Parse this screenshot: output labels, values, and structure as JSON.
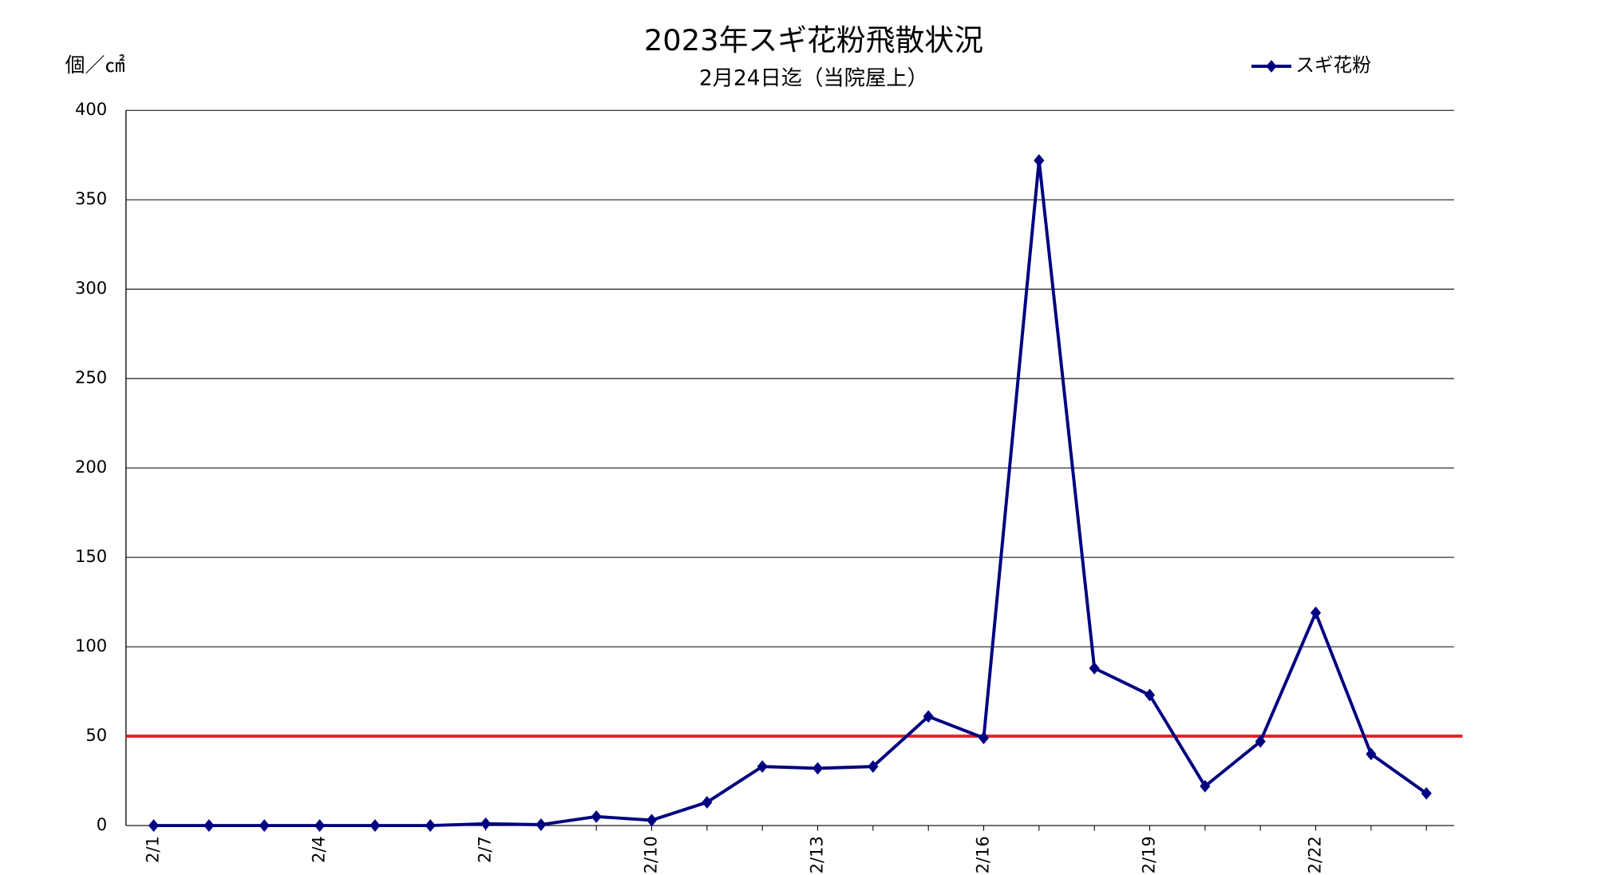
{
  "chart_data": {
    "type": "line",
    "title": "2023年スギ花粉飛散状況",
    "subtitle": "2月24日迄（当院屋上）",
    "y_label": "個／㎠",
    "categories": [
      "2/1",
      null,
      null,
      "2/4",
      null,
      null,
      "2/7",
      null,
      null,
      "2/10",
      null,
      null,
      "2/13",
      null,
      null,
      "2/16",
      null,
      null,
      "2/19",
      null,
      null,
      "2/22",
      null,
      null
    ],
    "series": [
      {
        "name": "スギ花粉",
        "color": "#000080",
        "values": [
          0,
          0,
          0,
          0,
          0,
          0,
          1,
          0.5,
          5,
          3,
          13,
          33,
          32,
          33,
          61,
          49,
          372,
          88,
          73,
          22,
          47,
          119,
          40,
          18
        ]
      }
    ],
    "ylim": [
      0,
      400
    ],
    "yticks": [
      0,
      50,
      100,
      150,
      200,
      250,
      300,
      350,
      400
    ],
    "grid": true,
    "legend": "top-right",
    "reference_line": {
      "value": 50,
      "color": "#e0202a"
    }
  }
}
